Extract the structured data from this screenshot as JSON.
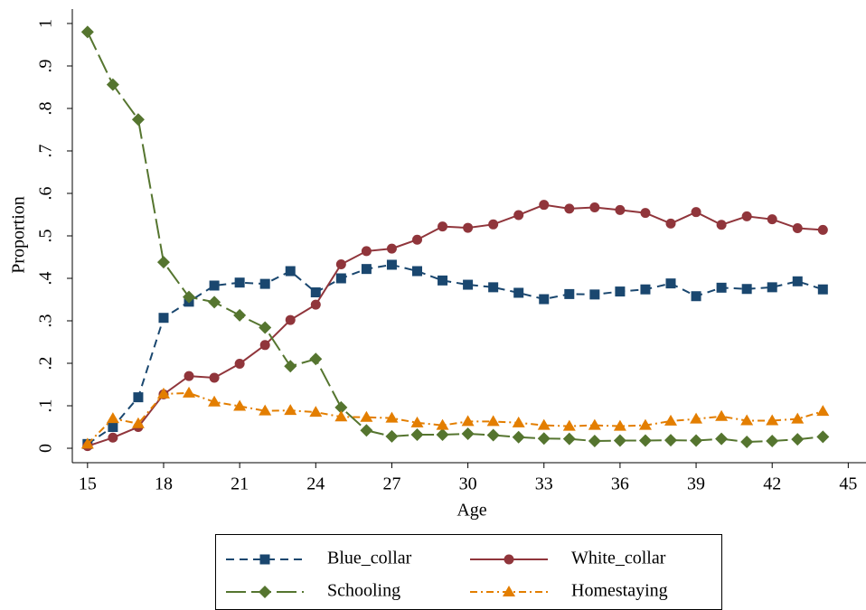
{
  "chart_data": {
    "type": "line",
    "x_label": "Age",
    "y_label": "Proportion",
    "x": [
      15,
      16,
      17,
      18,
      19,
      20,
      21,
      22,
      23,
      24,
      25,
      26,
      27,
      28,
      29,
      30,
      31,
      32,
      33,
      34,
      35,
      36,
      37,
      38,
      39,
      40,
      41,
      42,
      43,
      44
    ],
    "series": [
      {
        "name": "Blue_collar",
        "color": "#1a476f",
        "marker": "square",
        "line_style": "dash",
        "values": [
          0.01,
          0.05,
          0.12,
          0.307,
          0.345,
          0.383,
          0.39,
          0.387,
          0.417,
          0.367,
          0.4,
          0.422,
          0.432,
          0.417,
          0.395,
          0.385,
          0.379,
          0.366,
          0.351,
          0.363,
          0.362,
          0.369,
          0.374,
          0.388,
          0.358,
          0.378,
          0.375,
          0.379,
          0.393,
          0.374
        ]
      },
      {
        "name": "White_collar",
        "color": "#90353b",
        "marker": "circle",
        "line_style": "solid",
        "values": [
          0.005,
          0.025,
          0.05,
          0.127,
          0.17,
          0.166,
          0.199,
          0.243,
          0.302,
          0.338,
          0.433,
          0.464,
          0.47,
          0.491,
          0.522,
          0.519,
          0.527,
          0.549,
          0.573,
          0.564,
          0.567,
          0.561,
          0.554,
          0.529,
          0.556,
          0.526,
          0.546,
          0.539,
          0.518,
          0.514
        ]
      },
      {
        "name": "Schooling",
        "color": "#55752f",
        "marker": "diamond",
        "line_style": "longdash",
        "values": [
          0.98,
          0.856,
          0.774,
          0.438,
          0.356,
          0.344,
          0.313,
          0.284,
          0.193,
          0.21,
          0.096,
          0.042,
          0.028,
          0.032,
          0.032,
          0.034,
          0.031,
          0.026,
          0.023,
          0.022,
          0.017,
          0.018,
          0.018,
          0.019,
          0.018,
          0.022,
          0.015,
          0.017,
          0.021,
          0.027
        ]
      },
      {
        "name": "Homestaying",
        "color": "#e37e00",
        "marker": "triangle",
        "line_style": "dashdot",
        "values": [
          0.01,
          0.07,
          0.058,
          0.128,
          0.13,
          0.109,
          0.099,
          0.088,
          0.089,
          0.085,
          0.074,
          0.073,
          0.071,
          0.06,
          0.054,
          0.063,
          0.063,
          0.06,
          0.054,
          0.052,
          0.054,
          0.052,
          0.054,
          0.064,
          0.069,
          0.075,
          0.065,
          0.065,
          0.069,
          0.087
        ]
      }
    ],
    "xlim": [
      14.4,
      45.7
    ],
    "xticks": [
      15,
      18,
      21,
      24,
      27,
      30,
      33,
      36,
      39,
      42,
      45
    ],
    "ylim": [
      -0.034,
      1.034
    ],
    "yticks": [
      0,
      {
        "value": 0.1,
        "label": ".1"
      },
      {
        "value": 0.2,
        "label": ".2"
      },
      {
        "value": 0.3,
        "label": ".3"
      },
      {
        "value": 0.4,
        "label": ".4"
      },
      {
        "value": 0.5,
        "label": ".5"
      },
      {
        "value": 0.6,
        "label": ".6"
      },
      {
        "value": 0.7,
        "label": ".7"
      },
      {
        "value": 0.8,
        "label": ".8"
      },
      {
        "value": 0.9,
        "label": ".9"
      },
      1
    ],
    "legend": "bottom"
  }
}
